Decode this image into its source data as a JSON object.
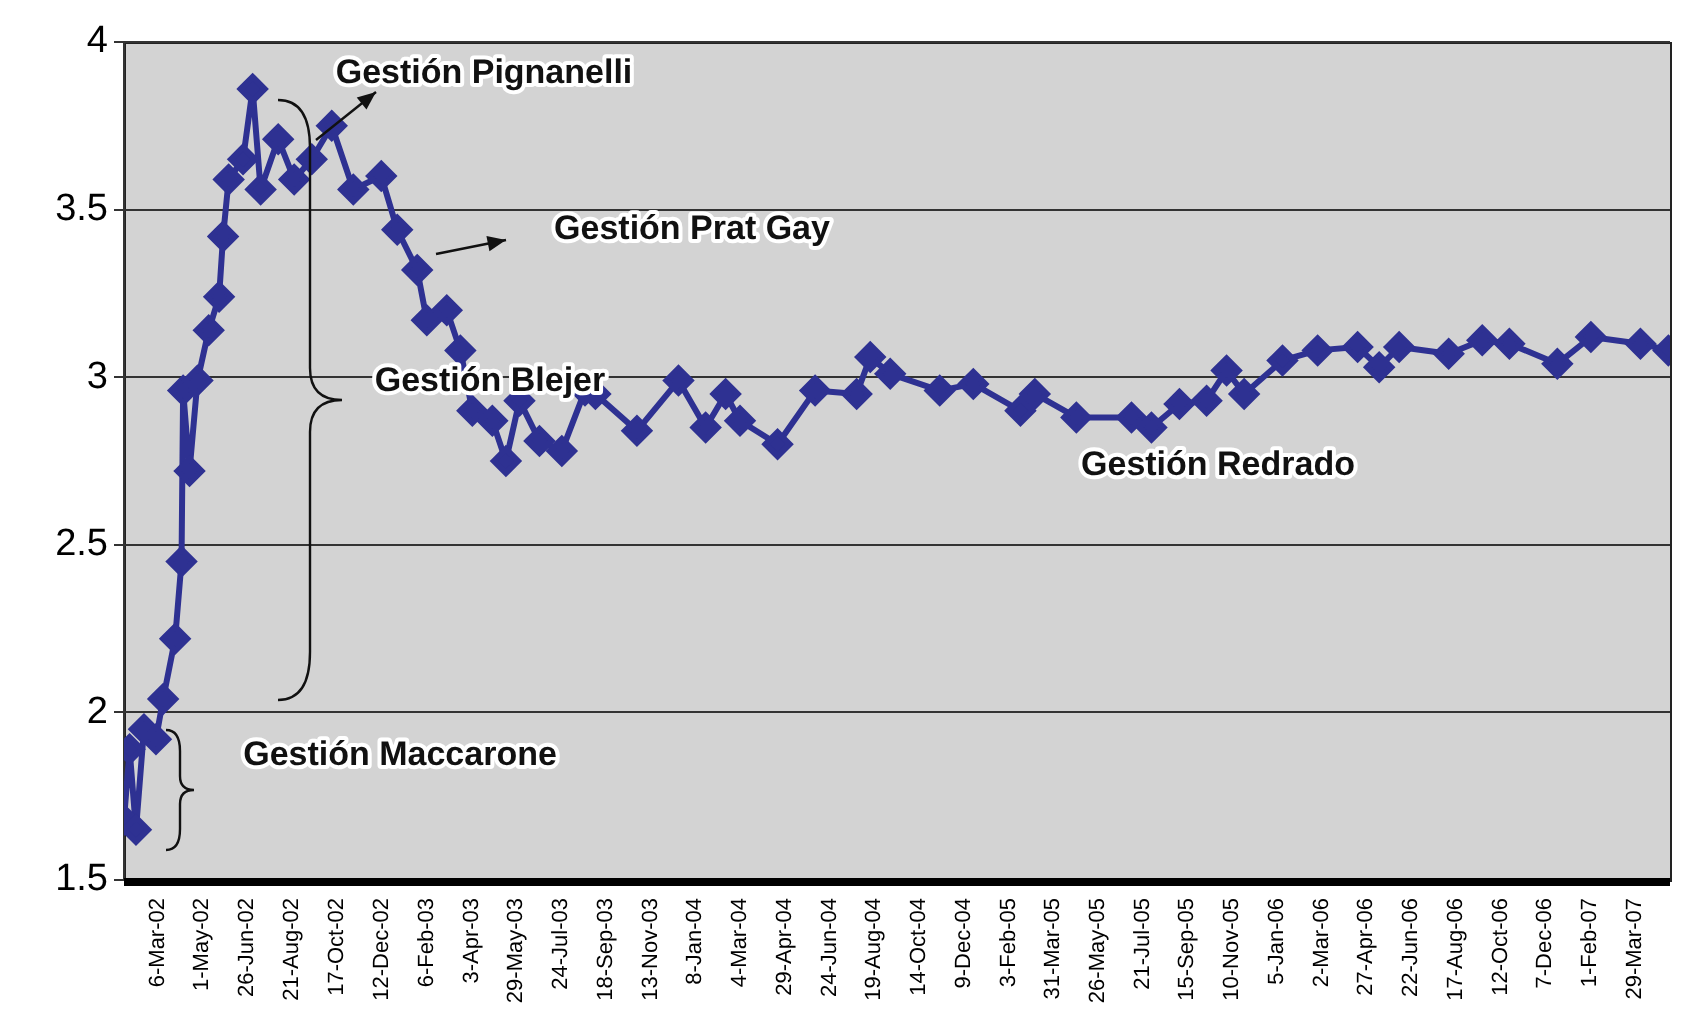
{
  "chart_data": {
    "type": "line",
    "x": [
      "2002-01-23",
      "2002-01-30",
      "2002-02-07",
      "2002-02-17",
      "2002-03-04",
      "2002-03-13",
      "2002-03-28",
      "2002-04-05",
      "2002-04-07",
      "2002-04-15",
      "2002-04-25",
      "2002-05-09",
      "2002-05-22",
      "2002-05-27",
      "2002-06-03",
      "2002-06-21",
      "2002-07-03",
      "2002-07-13",
      "2002-08-04",
      "2002-08-24",
      "2002-09-15",
      "2002-10-10",
      "2002-11-06",
      "2002-12-11",
      "2002-12-31",
      "2003-01-25",
      "2003-02-06",
      "2003-03-03",
      "2003-03-20",
      "2003-04-04",
      "2003-04-29",
      "2003-05-16",
      "2003-06-02",
      "2003-06-27",
      "2003-07-25",
      "2003-08-23",
      "2003-09-05",
      "2003-10-27",
      "2003-12-18",
      "2004-01-21",
      "2004-02-15",
      "2004-03-04",
      "2004-04-20",
      "2004-06-06",
      "2004-07-28",
      "2004-08-14",
      "2004-09-08",
      "2004-11-09",
      "2004-12-21",
      "2005-02-18",
      "2005-03-08",
      "2005-04-29",
      "2005-07-07",
      "2005-08-01",
      "2005-09-05",
      "2005-10-09",
      "2005-11-03",
      "2005-11-25",
      "2006-01-12",
      "2006-02-25",
      "2006-04-16",
      "2006-05-13",
      "2006-06-07",
      "2006-08-08",
      "2006-09-19",
      "2006-10-23",
      "2006-12-22",
      "2007-02-02",
      "2007-04-05",
      "2007-05-10"
    ],
    "series": [
      {
        "color": "#2e3192",
        "values": [
          1.68,
          1.89,
          1.65,
          1.95,
          1.92,
          2.04,
          2.22,
          2.45,
          2.96,
          2.72,
          2.99,
          3.14,
          3.24,
          3.42,
          3.59,
          3.65,
          3.86,
          3.56,
          3.71,
          3.59,
          3.65,
          3.75,
          3.56,
          3.6,
          3.44,
          3.32,
          3.17,
          3.2,
          3.08,
          2.9,
          2.87,
          2.75,
          2.93,
          2.81,
          2.78,
          2.96,
          2.95,
          2.84,
          2.99,
          2.85,
          2.95,
          2.87,
          2.8,
          2.96,
          2.95,
          3.06,
          3.01,
          2.96,
          2.98,
          2.9,
          2.95,
          2.88,
          2.88,
          2.85,
          2.92,
          2.93,
          3.02,
          2.95,
          3.05,
          3.08,
          3.09,
          3.03,
          3.09,
          3.07,
          3.11,
          3.1,
          3.04,
          3.12,
          3.1,
          3.08
        ]
      }
    ],
    "xlim": [
      "2002-01-23",
      "2007-05-12"
    ],
    "xticks": [
      {
        "value": "2002-03-06",
        "label": "6-Mar-02"
      },
      {
        "value": "2002-05-01",
        "label": "1-May-02"
      },
      {
        "value": "2002-06-26",
        "label": "26-Jun-02"
      },
      {
        "value": "2002-08-21",
        "label": "21-Aug-02"
      },
      {
        "value": "2002-10-17",
        "label": "17-Oct-02"
      },
      {
        "value": "2002-12-12",
        "label": "12-Dec-02"
      },
      {
        "value": "2003-02-06",
        "label": "6-Feb-03"
      },
      {
        "value": "2003-04-03",
        "label": "3-Apr-03"
      },
      {
        "value": "2003-05-29",
        "label": "29-May-03"
      },
      {
        "value": "2003-07-24",
        "label": "24-Jul-03"
      },
      {
        "value": "2003-09-18",
        "label": "18-Sep-03"
      },
      {
        "value": "2003-11-13",
        "label": "13-Nov-03"
      },
      {
        "value": "2004-01-08",
        "label": "8-Jan-04"
      },
      {
        "value": "2004-03-04",
        "label": "4-Mar-04"
      },
      {
        "value": "2004-04-29",
        "label": "29-Apr-04"
      },
      {
        "value": "2004-06-24",
        "label": "24-Jun-04"
      },
      {
        "value": "2004-08-19",
        "label": "19-Aug-04"
      },
      {
        "value": "2004-10-14",
        "label": "14-Oct-04"
      },
      {
        "value": "2004-12-09",
        "label": "9-Dec-04"
      },
      {
        "value": "2005-02-03",
        "label": "3-Feb-05"
      },
      {
        "value": "2005-03-31",
        "label": "31-Mar-05"
      },
      {
        "value": "2005-05-26",
        "label": "26-May-05"
      },
      {
        "value": "2005-07-21",
        "label": "21-Jul-05"
      },
      {
        "value": "2005-09-15",
        "label": "15-Sep-05"
      },
      {
        "value": "2005-11-10",
        "label": "10-Nov-05"
      },
      {
        "value": "2006-01-05",
        "label": "5-Jan-06"
      },
      {
        "value": "2006-03-02",
        "label": "2-Mar-06"
      },
      {
        "value": "2006-04-27",
        "label": "27-Apr-06"
      },
      {
        "value": "2006-06-22",
        "label": "22-Jun-06"
      },
      {
        "value": "2006-08-17",
        "label": "17-Aug-06"
      },
      {
        "value": "2006-10-12",
        "label": "12-Oct-06"
      },
      {
        "value": "2006-12-07",
        "label": "7-Dec-06"
      },
      {
        "value": "2007-02-01",
        "label": "1-Feb-07"
      },
      {
        "value": "2007-03-29",
        "label": "29-Mar-07"
      }
    ],
    "ylim": [
      1.5,
      4
    ],
    "yticks": [
      1.5,
      2,
      2.5,
      3,
      3.5,
      4
    ],
    "grid": "y",
    "marker": "diamond",
    "legend": false,
    "annotations": [
      "Gestión Pignanelli",
      "Gestión Prat Gay",
      "Gestión Blejer",
      "Gestión Redrado",
      "Gestión Maccarone"
    ]
  }
}
